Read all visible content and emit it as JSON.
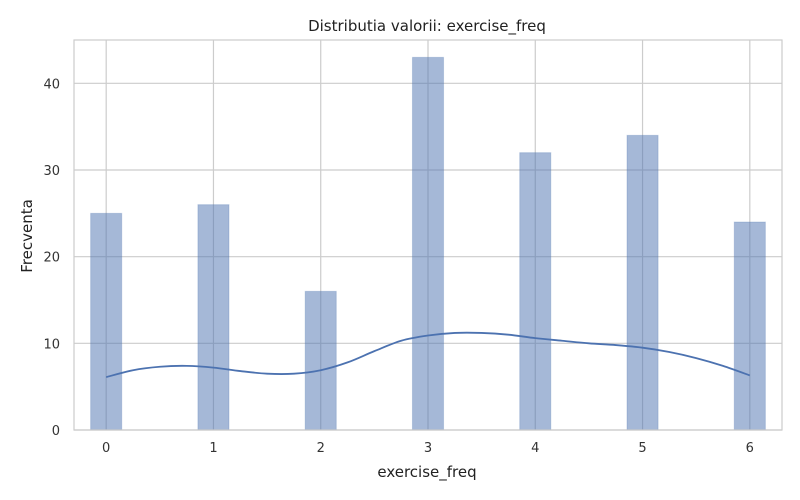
{
  "chart_data": {
    "type": "histogram",
    "title": "Distributia valorii: exercise_freq",
    "xlabel": "exercise_freq",
    "ylabel": "Frecventa",
    "xlim": [
      -0.3,
      6.3
    ],
    "ylim": [
      0,
      45
    ],
    "x_ticks": [
      0,
      1,
      2,
      3,
      4,
      5,
      6
    ],
    "y_ticks": [
      0,
      10,
      20,
      30,
      40
    ],
    "bars": [
      {
        "x": 0,
        "value": 25
      },
      {
        "x": 1,
        "value": 26
      },
      {
        "x": 2,
        "value": 16
      },
      {
        "x": 3,
        "value": 43
      },
      {
        "x": 4,
        "value": 32
      },
      {
        "x": 5,
        "value": 34
      },
      {
        "x": 6,
        "value": 24
      }
    ],
    "kde": {
      "x": [
        0,
        0.25,
        0.5,
        0.75,
        1.0,
        1.25,
        1.5,
        1.75,
        2.0,
        2.25,
        2.5,
        2.75,
        3.0,
        3.25,
        3.5,
        3.75,
        4.0,
        4.25,
        4.5,
        4.75,
        5.0,
        5.25,
        5.5,
        5.75,
        6.0
      ],
      "y": [
        6.1,
        6.9,
        7.3,
        7.4,
        7.2,
        6.8,
        6.5,
        6.5,
        6.9,
        7.8,
        9.1,
        10.3,
        10.9,
        11.2,
        11.2,
        11.0,
        10.6,
        10.3,
        10.0,
        9.8,
        9.5,
        9.0,
        8.3,
        7.4,
        6.3
      ]
    },
    "grid": true,
    "colors": {
      "bar_fill": "#4c72b0",
      "bar_opacity": "0.5",
      "kde_line": "#4c72b0",
      "grid": "#cccccc",
      "spine": "#cccccc"
    }
  }
}
